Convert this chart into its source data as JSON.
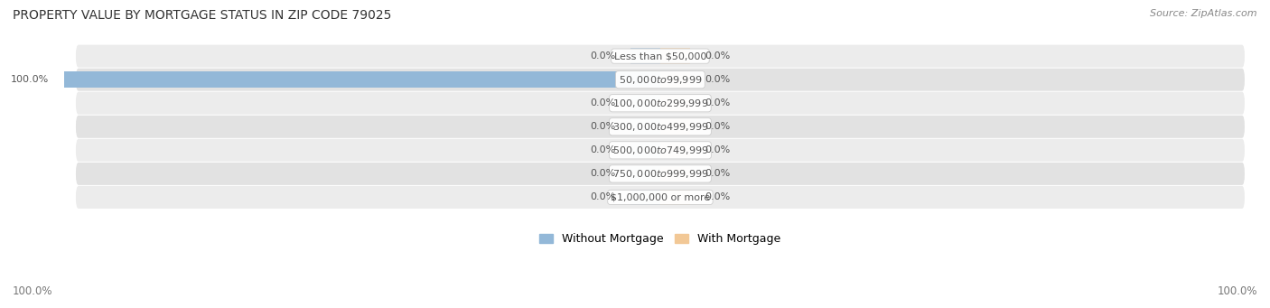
{
  "title": "PROPERTY VALUE BY MORTGAGE STATUS IN ZIP CODE 79025",
  "source": "Source: ZipAtlas.com",
  "categories": [
    "Less than $50,000",
    "$50,000 to $99,999",
    "$100,000 to $299,999",
    "$300,000 to $499,999",
    "$500,000 to $749,999",
    "$750,000 to $999,999",
    "$1,000,000 or more"
  ],
  "without_mortgage": [
    0.0,
    100.0,
    0.0,
    0.0,
    0.0,
    0.0,
    0.0
  ],
  "with_mortgage": [
    0.0,
    0.0,
    0.0,
    0.0,
    0.0,
    0.0,
    0.0
  ],
  "color_without": "#93b8d8",
  "color_with": "#f2c896",
  "row_bg_colors": [
    "#ececec",
    "#e2e2e2",
    "#ececec",
    "#e2e2e2",
    "#ececec",
    "#e2e2e2",
    "#ececec"
  ],
  "label_color": "#555555",
  "title_color": "#333333",
  "source_color": "#888888",
  "axis_label_color": "#777777",
  "legend_without": "Without Mortgage",
  "legend_with": "With Mortgage",
  "stub_size": 5.0,
  "xlim": 100
}
